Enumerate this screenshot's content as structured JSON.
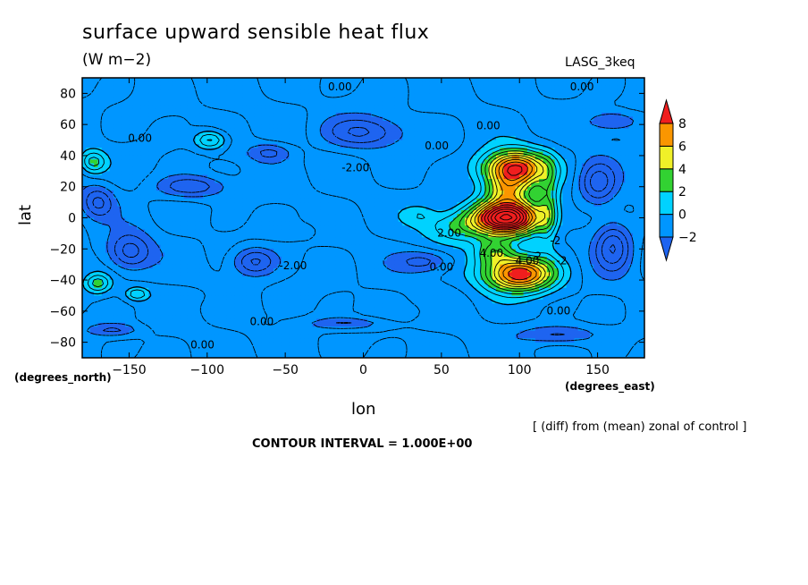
{
  "chart_data": {
    "type": "heatmap",
    "title": "surface upward sensible heat flux",
    "units": "(W m−2)",
    "run_label": "LASG_3keq",
    "xlabel": "lon",
    "ylabel": "lat",
    "x_unit_label": "(degrees_east)",
    "y_unit_label": "(degrees_north)",
    "note": "[ (diff) from (mean) zonal of control ]",
    "contour_interval_text": "CONTOUR INTERVAL = 1.000E+00",
    "xlim": [
      -180,
      180
    ],
    "ylim": [
      -90,
      90
    ],
    "x_ticks": [
      {
        "value": -150,
        "label": "−150"
      },
      {
        "value": -100,
        "label": "−100"
      },
      {
        "value": -50,
        "label": "−50"
      },
      {
        "value": 0,
        "label": "0"
      },
      {
        "value": 50,
        "label": "50"
      },
      {
        "value": 100,
        "label": "100"
      },
      {
        "value": 150,
        "label": "150"
      }
    ],
    "y_ticks": [
      {
        "value": 80,
        "label": "80"
      },
      {
        "value": 60,
        "label": "60"
      },
      {
        "value": 40,
        "label": "40"
      },
      {
        "value": 20,
        "label": "20"
      },
      {
        "value": 0,
        "label": "0"
      },
      {
        "value": -20,
        "label": "−20"
      },
      {
        "value": -40,
        "label": "−40"
      },
      {
        "value": -60,
        "label": "−60"
      },
      {
        "value": -80,
        "label": "−80"
      }
    ],
    "color_levels": [
      {
        "value": -2,
        "label": "−2"
      },
      {
        "value": 0,
        "label": "0"
      },
      {
        "value": 2,
        "label": "2"
      },
      {
        "value": 4,
        "label": "4"
      },
      {
        "value": 6,
        "label": "6"
      },
      {
        "value": 8,
        "label": "8"
      }
    ],
    "colors": {
      "below_-2": "#1e64f0",
      "-2_to_0": "#0096ff",
      "0_to_2": "#00d2ff",
      "2_to_4": "#32d232",
      "4_to_6": "#f0f028",
      "6_to_8": "#fa9600",
      "above_8": "#f01e1e"
    },
    "background_value": -1,
    "features": [
      {
        "lon": 97,
        "lat": 32,
        "rx": 20,
        "ry": 11,
        "peak": 10
      },
      {
        "lon": 100,
        "lat": -36,
        "rx": 22,
        "ry": 11,
        "peak": 10
      },
      {
        "lon": 92,
        "lat": 0,
        "rx": 22,
        "ry": 11,
        "peak": 14
      },
      {
        "lon": 92,
        "lat": 18,
        "rx": 14,
        "ry": 10,
        "peak": 5
      },
      {
        "lon": 84,
        "lat": -22,
        "rx": 12,
        "ry": 8,
        "peak": 4
      },
      {
        "lon": 118,
        "lat": 8,
        "rx": 6,
        "ry": 24,
        "peak": 3
      },
      {
        "lon": 58,
        "lat": -6,
        "rx": 20,
        "ry": 10,
        "peak": 2.6
      },
      {
        "lon": 36,
        "lat": 2,
        "rx": 10,
        "ry": 6,
        "peak": 1.4
      },
      {
        "lon": -98,
        "lat": 50,
        "rx": 10,
        "ry": 6,
        "peak": 3.6
      },
      {
        "lon": -173,
        "lat": 36,
        "rx": 8,
        "ry": 7,
        "peak": 3.5
      },
      {
        "lon": -170,
        "lat": -42,
        "rx": 8,
        "ry": 6,
        "peak": 3.4
      },
      {
        "lon": -145,
        "lat": -49,
        "rx": 7,
        "ry": 4,
        "peak": 3
      },
      {
        "lon": -110,
        "lat": -50,
        "rx": 20,
        "ry": 6,
        "peak": 0.4
      },
      {
        "lon": -35,
        "lat": -8,
        "rx": 8,
        "ry": 5,
        "peak": 0.5
      },
      {
        "lon": 30,
        "lat": -60,
        "rx": 9,
        "ry": 4,
        "peak": 0.4
      },
      {
        "lon": -60,
        "lat": -68,
        "rx": 6,
        "ry": 3,
        "peak": 0.3
      },
      {
        "lon": 150,
        "lat": 22,
        "rx": 12,
        "ry": 14,
        "peak": -3.5
      },
      {
        "lon": 160,
        "lat": -18,
        "rx": 12,
        "ry": 16,
        "peak": -4
      },
      {
        "lon": -150,
        "lat": -22,
        "rx": 14,
        "ry": 12,
        "peak": -3.6
      },
      {
        "lon": -70,
        "lat": -28,
        "rx": 14,
        "ry": 9,
        "peak": -3.4
      },
      {
        "lon": -110,
        "lat": 20,
        "rx": 22,
        "ry": 7,
        "peak": -3
      },
      {
        "lon": -170,
        "lat": 10,
        "rx": 10,
        "ry": 10,
        "peak": -3
      },
      {
        "lon": 0,
        "lat": 55,
        "rx": 25,
        "ry": 10,
        "peak": -3
      },
      {
        "lon": 40,
        "lat": -28,
        "rx": 18,
        "ry": 7,
        "peak": -2.5
      },
      {
        "lon": 125,
        "lat": -75,
        "rx": 25,
        "ry": 6,
        "peak": -2.5
      },
      {
        "lon": -10,
        "lat": -68,
        "rx": 25,
        "ry": 4,
        "peak": -2.2
      },
      {
        "lon": -160,
        "lat": -72,
        "rx": 16,
        "ry": 4,
        "peak": -2.2
      },
      {
        "lon": 160,
        "lat": 62,
        "rx": 16,
        "ry": 6,
        "peak": -2.3
      },
      {
        "lon": -60,
        "lat": 42,
        "rx": 14,
        "ry": 6,
        "peak": -2.3
      }
    ],
    "contour_labels": [
      {
        "lon": -15,
        "lat": 84,
        "text": "0.00"
      },
      {
        "lon": 140,
        "lat": 84,
        "text": "0.00"
      },
      {
        "lon": -143,
        "lat": 51,
        "text": "0.00"
      },
      {
        "lon": 80,
        "lat": 59,
        "text": "0.00"
      },
      {
        "lon": 47,
        "lat": 46,
        "text": "0.00"
      },
      {
        "lon": -5,
        "lat": 32,
        "text": "-2.00"
      },
      {
        "lon": 55,
        "lat": -10,
        "text": "2.00"
      },
      {
        "lon": 82,
        "lat": -23,
        "text": "4.00"
      },
      {
        "lon": 105,
        "lat": -28,
        "text": "4.00"
      },
      {
        "lon": 50,
        "lat": -32,
        "text": "0.00"
      },
      {
        "lon": -45,
        "lat": -31,
        "text": "-2.00"
      },
      {
        "lon": 125,
        "lat": -60,
        "text": "0.00"
      },
      {
        "lon": -65,
        "lat": -67,
        "text": "0.00"
      },
      {
        "lon": -103,
        "lat": -82,
        "text": "0.00"
      },
      {
        "lon": 123,
        "lat": -15,
        "text": "-2"
      },
      {
        "lon": 112,
        "lat": -25,
        "text": "2"
      },
      {
        "lon": 127,
        "lat": -28,
        "text": "-2"
      }
    ]
  }
}
